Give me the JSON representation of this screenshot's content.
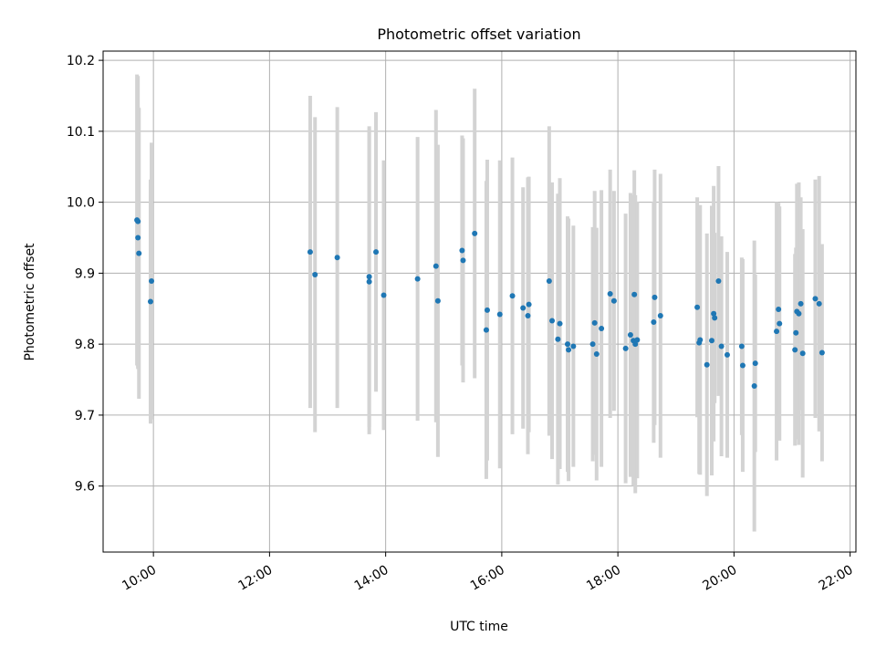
{
  "chart_data": {
    "type": "scatter",
    "title": "Photometric offset variation",
    "xlabel": "UTC time",
    "ylabel": "Photometric offset",
    "x_ticks": [
      "10:00",
      "12:00",
      "14:00",
      "16:00",
      "18:00",
      "20:00",
      "22:00"
    ],
    "y_ticks": [
      "9.6",
      "9.7",
      "9.8",
      "9.9",
      "10.0",
      "10.1",
      "10.2"
    ],
    "xlim": [
      "09:08",
      "22:06"
    ],
    "ylim": [
      9.507,
      10.213
    ],
    "grid": true,
    "errorbar_color": "#d3d3d3",
    "marker_color": "#1f77b4",
    "series": [
      {
        "points": [
          {
            "t": "09:43",
            "y": 9.975,
            "err": 0.205
          },
          {
            "t": "09:44",
            "y": 9.973,
            "err": 0.205
          },
          {
            "t": "09:44",
            "y": 9.95,
            "err": 0.185
          },
          {
            "t": "09:45",
            "y": 9.928,
            "err": 0.205
          },
          {
            "t": "09:57",
            "y": 9.86,
            "err": 0.172
          },
          {
            "t": "09:58",
            "y": 9.889,
            "err": 0.195
          },
          {
            "t": "12:42",
            "y": 9.93,
            "err": 0.22
          },
          {
            "t": "12:47",
            "y": 9.898,
            "err": 0.222
          },
          {
            "t": "13:10",
            "y": 9.922,
            "err": 0.212
          },
          {
            "t": "13:43",
            "y": 9.895,
            "err": 0.212
          },
          {
            "t": "13:43",
            "y": 9.888,
            "err": 0.215
          },
          {
            "t": "13:50",
            "y": 9.93,
            "err": 0.197
          },
          {
            "t": "13:58",
            "y": 9.869,
            "err": 0.19
          },
          {
            "t": "14:33",
            "y": 9.892,
            "err": 0.2
          },
          {
            "t": "14:52",
            "y": 9.91,
            "err": 0.22
          },
          {
            "t": "14:54",
            "y": 9.861,
            "err": 0.22
          },
          {
            "t": "15:19",
            "y": 9.932,
            "err": 0.162
          },
          {
            "t": "15:20",
            "y": 9.918,
            "err": 0.172
          },
          {
            "t": "15:32",
            "y": 9.956,
            "err": 0.204
          },
          {
            "t": "15:44",
            "y": 9.82,
            "err": 0.21
          },
          {
            "t": "15:45",
            "y": 9.848,
            "err": 0.212
          },
          {
            "t": "15:58",
            "y": 9.842,
            "err": 0.217
          },
          {
            "t": "16:11",
            "y": 9.868,
            "err": 0.195
          },
          {
            "t": "16:22",
            "y": 9.851,
            "err": 0.17
          },
          {
            "t": "16:27",
            "y": 9.84,
            "err": 0.195
          },
          {
            "t": "16:28",
            "y": 9.856,
            "err": 0.18
          },
          {
            "t": "16:49",
            "y": 9.889,
            "err": 0.218
          },
          {
            "t": "16:52",
            "y": 9.833,
            "err": 0.195
          },
          {
            "t": "16:58",
            "y": 9.807,
            "err": 0.205
          },
          {
            "t": "17:00",
            "y": 9.829,
            "err": 0.205
          },
          {
            "t": "17:08",
            "y": 9.8,
            "err": 0.18
          },
          {
            "t": "17:09",
            "y": 9.792,
            "err": 0.185
          },
          {
            "t": "17:14",
            "y": 9.797,
            "err": 0.17
          },
          {
            "t": "17:34",
            "y": 9.8,
            "err": 0.165
          },
          {
            "t": "17:36",
            "y": 9.83,
            "err": 0.186
          },
          {
            "t": "17:38",
            "y": 9.786,
            "err": 0.178
          },
          {
            "t": "17:43",
            "y": 9.822,
            "err": 0.195
          },
          {
            "t": "17:52",
            "y": 9.871,
            "err": 0.175
          },
          {
            "t": "17:56",
            "y": 9.861,
            "err": 0.155
          },
          {
            "t": "18:08",
            "y": 9.794,
            "err": 0.19
          },
          {
            "t": "18:13",
            "y": 9.813,
            "err": 0.2
          },
          {
            "t": "18:16",
            "y": 9.805,
            "err": 0.205
          },
          {
            "t": "18:17",
            "y": 9.87,
            "err": 0.175
          },
          {
            "t": "18:18",
            "y": 9.8,
            "err": 0.21
          },
          {
            "t": "18:20",
            "y": 9.806,
            "err": 0.195
          },
          {
            "t": "18:37",
            "y": 9.831,
            "err": 0.17
          },
          {
            "t": "18:38",
            "y": 9.866,
            "err": 0.18
          },
          {
            "t": "18:44",
            "y": 9.84,
            "err": 0.2
          },
          {
            "t": "19:22",
            "y": 9.852,
            "err": 0.155
          },
          {
            "t": "19:24",
            "y": 9.802,
            "err": 0.185
          },
          {
            "t": "19:25",
            "y": 9.806,
            "err": 0.19
          },
          {
            "t": "19:32",
            "y": 9.771,
            "err": 0.185
          },
          {
            "t": "19:37",
            "y": 9.805,
            "err": 0.19
          },
          {
            "t": "19:39",
            "y": 9.843,
            "err": 0.18
          },
          {
            "t": "19:40",
            "y": 9.837,
            "err": 0.12
          },
          {
            "t": "19:44",
            "y": 9.889,
            "err": 0.162
          },
          {
            "t": "19:47",
            "y": 9.797,
            "err": 0.155
          },
          {
            "t": "19:53",
            "y": 9.785,
            "err": 0.145
          },
          {
            "t": "20:08",
            "y": 9.797,
            "err": 0.125
          },
          {
            "t": "20:09",
            "y": 9.77,
            "err": 0.15
          },
          {
            "t": "20:21",
            "y": 9.741,
            "err": 0.205
          },
          {
            "t": "20:22",
            "y": 9.773,
            "err": 0.125
          },
          {
            "t": "20:44",
            "y": 9.818,
            "err": 0.182
          },
          {
            "t": "20:46",
            "y": 9.849,
            "err": 0.15
          },
          {
            "t": "20:47",
            "y": 9.829,
            "err": 0.165
          },
          {
            "t": "21:03",
            "y": 9.792,
            "err": 0.135
          },
          {
            "t": "21:04",
            "y": 9.816,
            "err": 0.12
          },
          {
            "t": "21:05",
            "y": 9.846,
            "err": 0.18
          },
          {
            "t": "21:07",
            "y": 9.843,
            "err": 0.185
          },
          {
            "t": "21:09",
            "y": 9.857,
            "err": 0.15
          },
          {
            "t": "21:11",
            "y": 9.787,
            "err": 0.175
          },
          {
            "t": "21:24",
            "y": 9.864,
            "err": 0.168
          },
          {
            "t": "21:28",
            "y": 9.857,
            "err": 0.18
          },
          {
            "t": "21:31",
            "y": 9.788,
            "err": 0.153
          }
        ]
      }
    ]
  }
}
